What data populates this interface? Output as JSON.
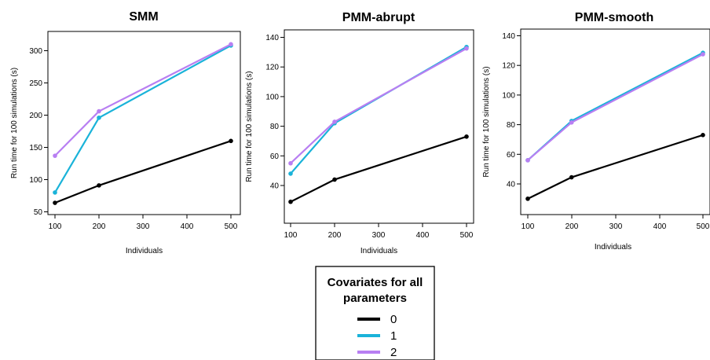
{
  "chart_data": [
    {
      "type": "line",
      "title": "SMM",
      "xlabel": "Individuals",
      "ylabel": "Run time for 100 simulations (s)",
      "x": [
        "100",
        "200",
        "500"
      ],
      "xticks": [
        "100",
        "200",
        "300",
        "400",
        "500"
      ],
      "yticks": [
        50,
        100,
        150,
        200,
        250,
        300
      ],
      "series": [
        {
          "name": "0",
          "color": "#000000",
          "values": [
            64,
            91,
            160
          ]
        },
        {
          "name": "1",
          "color": "#1ab3d9",
          "values": [
            80,
            196,
            308
          ]
        },
        {
          "name": "2",
          "color": "#b87ff2",
          "values": [
            137,
            206,
            310
          ]
        }
      ]
    },
    {
      "type": "line",
      "title": "PMM-abrupt",
      "xlabel": "Individuals",
      "ylabel": "Run time for 100 simulations (s)",
      "x": [
        "100",
        "200",
        "500"
      ],
      "xticks": [
        "100",
        "200",
        "300",
        "400",
        "500"
      ],
      "yticks": [
        40,
        60,
        80,
        100,
        120,
        140
      ],
      "series": [
        {
          "name": "0",
          "color": "#000000",
          "values": [
            29,
            44,
            73
          ]
        },
        {
          "name": "1",
          "color": "#1ab3d9",
          "values": [
            48,
            82,
            133.5
          ]
        },
        {
          "name": "2",
          "color": "#b87ff2",
          "values": [
            55,
            83,
            132.5
          ]
        }
      ]
    },
    {
      "type": "line",
      "title": "PMM-smooth",
      "xlabel": "Individuals",
      "ylabel": "Run time for 100 simulations (s)",
      "x": [
        "100",
        "200",
        "500"
      ],
      "xticks": [
        "100",
        "200",
        "300",
        "400",
        "500"
      ],
      "yticks": [
        40,
        60,
        80,
        100,
        120,
        140
      ],
      "series": [
        {
          "name": "0",
          "color": "#000000",
          "values": [
            30,
            44.5,
            73
          ]
        },
        {
          "name": "1",
          "color": "#1ab3d9",
          "values": [
            56,
            82.5,
            128.5
          ]
        },
        {
          "name": "2",
          "color": "#b87ff2",
          "values": [
            56,
            81.5,
            127.5
          ]
        }
      ]
    }
  ],
  "legend": {
    "title_line1": "Covariates for all",
    "title_line2": "parameters",
    "entries": [
      {
        "label": "0",
        "color": "#000000"
      },
      {
        "label": "1",
        "color": "#1ab3d9"
      },
      {
        "label": "2",
        "color": "#b87ff2"
      }
    ]
  }
}
